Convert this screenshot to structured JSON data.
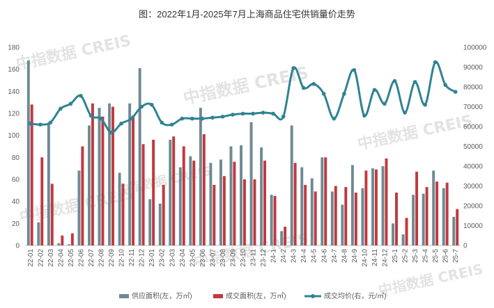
{
  "title": "图：2022年1月-2025年7月上海商品住宅供销量价走势",
  "watermark": "中指数据 CREIS",
  "legend": {
    "supply": "供应面积(左，万㎡)",
    "deal": "成交面积(左，万㎡)",
    "price": "成交均价(右，元/㎡)"
  },
  "colors": {
    "supply": "#6e8a93",
    "deal": "#c0393e",
    "price": "#2f8393"
  },
  "chart_data": {
    "type": "bar",
    "categories": [
      "22-01",
      "22-02",
      "22-03",
      "22-04",
      "22-05",
      "22-06",
      "22-07",
      "22-08",
      "22-09",
      "22-10",
      "22-11",
      "22-12",
      "23-01",
      "23-02",
      "23-03",
      "23-04",
      "23-05",
      "23-06",
      "23-07",
      "23-08",
      "23-09",
      "23-10",
      "23-11",
      "23-12",
      "24-1",
      "24-2",
      "24-3",
      "24-4",
      "24-5",
      "24-6",
      "24-7",
      "24-8",
      "24-9",
      "24-10",
      "24-11",
      "24-12",
      "25-1",
      "25-2",
      "25-3",
      "25-4",
      "25-5",
      "25-6",
      "25-7"
    ],
    "y_left": {
      "min": 0,
      "max": 180,
      "ticks": [
        0,
        20,
        40,
        60,
        80,
        100,
        120,
        140,
        160,
        180
      ]
    },
    "y_right": {
      "min": 0,
      "max": 100000,
      "ticks": [
        0,
        10000,
        20000,
        30000,
        40000,
        50000,
        60000,
        70000,
        80000,
        90000,
        100000
      ]
    },
    "series": [
      {
        "name": "供应面积(左，万㎡)",
        "type": "bar",
        "axis": "left",
        "values": [
          168,
          21,
          110,
          2,
          1,
          68,
          109,
          125,
          129,
          66,
          129,
          161,
          42,
          38,
          96,
          71,
          81,
          125,
          75,
          78,
          90,
          91,
          112,
          89,
          46,
          13,
          109,
          71,
          61,
          80,
          49,
          37,
          73,
          52,
          70,
          72,
          20,
          10,
          46,
          47,
          68,
          52,
          26
        ]
      },
      {
        "name": "成交面积(左，万㎡)",
        "type": "bar",
        "axis": "left",
        "values": [
          128,
          80,
          56,
          9,
          11,
          90,
          129,
          117,
          126,
          56,
          118,
          92,
          96,
          55,
          99,
          90,
          77,
          101,
          55,
          63,
          76,
          60,
          60,
          77,
          45,
          17,
          75,
          55,
          49,
          80,
          54,
          53,
          48,
          68,
          69,
          79,
          48,
          25,
          67,
          53,
          58,
          57,
          33
        ]
      },
      {
        "name": "成交均价(右，元/㎡)",
        "type": "line",
        "axis": "right",
        "values": [
          61500,
          61000,
          62000,
          69000,
          71500,
          75500,
          65500,
          64000,
          57000,
          61500,
          64000,
          70000,
          71000,
          62000,
          61000,
          64000,
          64000,
          64000,
          64500,
          65000,
          66000,
          66500,
          66500,
          67000,
          66500,
          65000,
          89500,
          79500,
          81500,
          76500,
          64000,
          76500,
          88500,
          65500,
          78500,
          71500,
          83000,
          67000,
          82500,
          71000,
          92500,
          81000,
          77500
        ]
      }
    ]
  }
}
